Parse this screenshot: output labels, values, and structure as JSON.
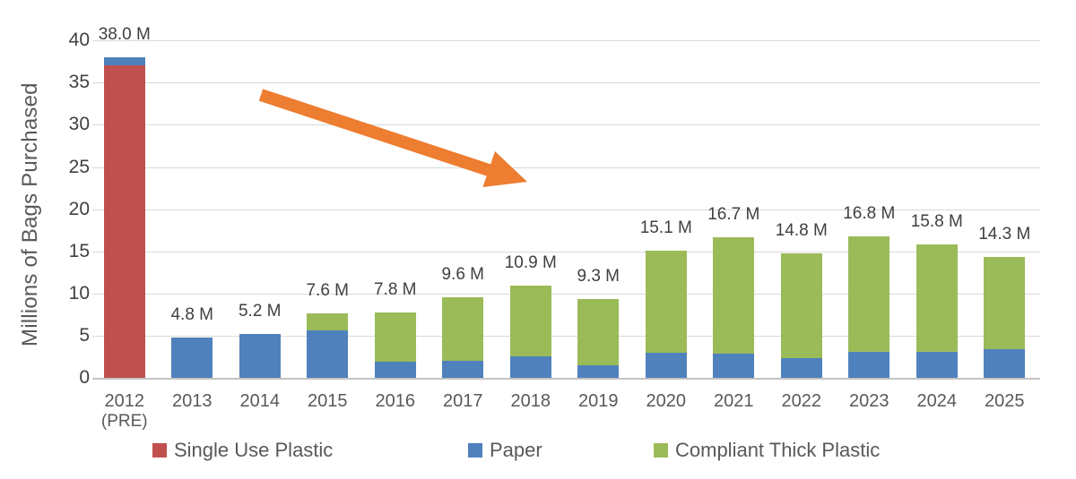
{
  "chart_data": {
    "type": "bar",
    "stacked": true,
    "title": "",
    "ylabel": "Millions of Bags Purchased",
    "xlabel": "",
    "ylim": [
      0,
      40
    ],
    "yticks": [
      0,
      5,
      10,
      15,
      20,
      25,
      30,
      35,
      40
    ],
    "grid": true,
    "legend_position": "bottom",
    "categories": [
      "2012",
      "2013",
      "2014",
      "2015",
      "2016",
      "2017",
      "2018",
      "2019",
      "2020",
      "2021",
      "2022",
      "2023",
      "2024",
      "2025"
    ],
    "category_sublabels": [
      "(PRE)",
      "",
      "",
      "",
      "",
      "",
      "",
      "",
      "",
      "",
      "",
      "",
      "",
      ""
    ],
    "series": [
      {
        "name": "Single Use Plastic",
        "color": "#C0504D",
        "values": [
          37.0,
          0,
          0,
          0,
          0,
          0,
          0,
          0,
          0,
          0,
          0,
          0,
          0,
          0
        ]
      },
      {
        "name": "Paper",
        "color": "#4F81BD",
        "values": [
          1.0,
          4.8,
          5.2,
          5.6,
          1.9,
          2.0,
          2.5,
          1.5,
          3.0,
          2.9,
          2.3,
          3.1,
          3.1,
          3.4
        ]
      },
      {
        "name": "Compliant Thick Plastic",
        "color": "#9BBB59",
        "values": [
          0,
          0,
          0,
          2.0,
          5.9,
          7.6,
          8.4,
          7.8,
          12.1,
          13.8,
          12.5,
          13.7,
          12.7,
          10.9
        ]
      }
    ],
    "totals": [
      38.0,
      4.8,
      5.2,
      7.6,
      7.8,
      9.6,
      10.9,
      9.3,
      15.1,
      16.7,
      14.8,
      16.8,
      15.8,
      14.3
    ],
    "total_labels": [
      "38.0 M",
      "4.8 M",
      "5.2 M",
      "7.6 M",
      "7.8 M",
      "9.6 M",
      "10.9 M",
      "9.3 M",
      "15.1 M",
      "16.7 M",
      "14.8 M",
      "16.8 M",
      "15.8 M",
      "14.3 M"
    ],
    "annotation": "orange downward trend arrow from upper-left toward 2018"
  },
  "legend": {
    "items": [
      {
        "label": "Single Use Plastic",
        "color": "#C0504D"
      },
      {
        "label": "Paper",
        "color": "#4F81BD"
      },
      {
        "label": "Compliant Thick Plastic",
        "color": "#9BBB59"
      }
    ]
  },
  "colors": {
    "arrow": "#ED7D31",
    "gridline": "#D9D9D9",
    "axis_line": "#C3C3C3",
    "y_tick_label": "#404040",
    "data_label": "#404040",
    "x_tick_label": "#595959",
    "legend_label": "#595959",
    "background": "#FFFFFF"
  }
}
